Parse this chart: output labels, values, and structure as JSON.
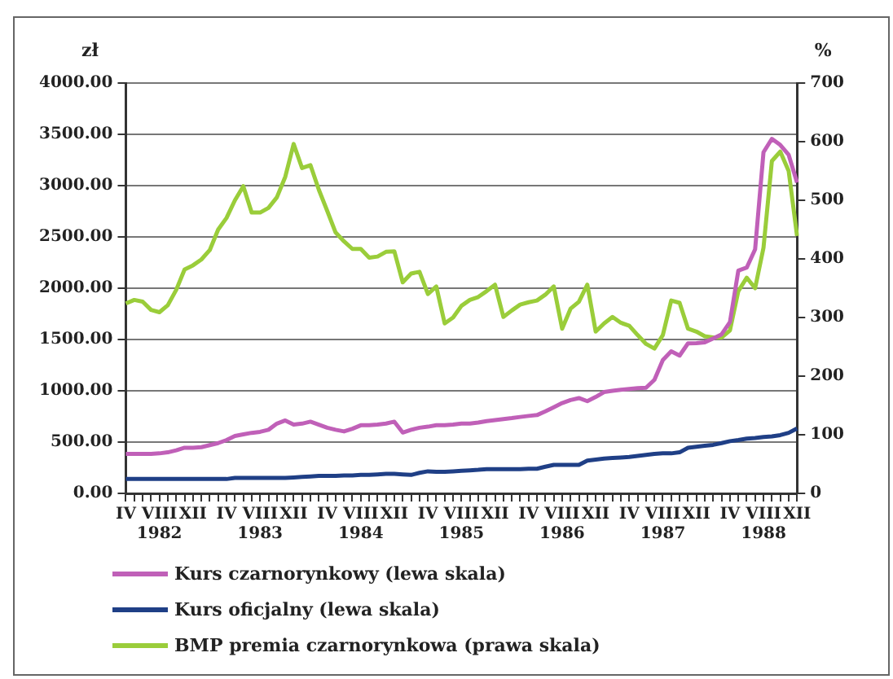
{
  "chart_data": {
    "type": "line",
    "ylabel": "zł",
    "y2label": "%",
    "categories": [
      "IV",
      null,
      null,
      null,
      "VIII\n1982",
      null,
      null,
      null,
      "XII",
      null,
      null,
      null,
      "IV",
      null,
      null,
      null,
      "VIII\n1983",
      null,
      null,
      null,
      "XII",
      null,
      null,
      null,
      "IV",
      null,
      null,
      null,
      "VIII\n1984",
      null,
      null,
      null,
      "XII",
      null,
      null,
      null,
      "IV",
      null,
      null,
      null,
      "VIII\n1985",
      null,
      null,
      null,
      "XII",
      null,
      null,
      null,
      "IV",
      null,
      null,
      null,
      "VIII\n1986",
      null,
      null,
      null,
      "XII",
      null,
      null,
      null,
      "IV",
      null,
      null,
      null,
      "VIII\n1987",
      null,
      null,
      null,
      "XII",
      null,
      null,
      null,
      "IV",
      null,
      null,
      null,
      "VIII\n1988",
      null,
      null,
      null,
      "XII"
    ],
    "series": [
      {
        "name": "Kurs czarnorynkowy (lewa skala)",
        "color": "#c060b8",
        "values": [
          385,
          385,
          385,
          385,
          390,
          400,
          420,
          445,
          445,
          450,
          470,
          490,
          520,
          560,
          575,
          590,
          600,
          620,
          680,
          711,
          670,
          680,
          699,
          670,
          640,
          620,
          604,
          630,
          664,
          664,
          670,
          681,
          699,
          593,
          620,
          640,
          650,
          664,
          664,
          670,
          681,
          681,
          690,
          705,
          715,
          725,
          734,
          745,
          755,
          763,
          800,
          840,
          880,
          910,
          929,
          899,
          940,
          988,
          1000,
          1010,
          1018,
          1025,
          1030,
          1107,
          1300,
          1385,
          1343,
          1462,
          1465,
          1473,
          1510,
          1550,
          1669,
          2172,
          2201,
          2379,
          3325,
          3456,
          3396,
          3300,
          3030
        ]
      },
      {
        "name": "Kurs oficjalny (lewa skala)",
        "color": "#1f3f86",
        "values": [
          140,
          140,
          140,
          140,
          140,
          140,
          140,
          140,
          140,
          140,
          140,
          140,
          140,
          150,
          150,
          150,
          150,
          150,
          150,
          150,
          155,
          160,
          165,
          170,
          170,
          170,
          175,
          175,
          180,
          180,
          185,
          190,
          190,
          185,
          180,
          200,
          215,
          210,
          210,
          215,
          220,
          225,
          230,
          237,
          237,
          237,
          237,
          237,
          240,
          240,
          260,
          278,
          278,
          278,
          278,
          320,
          330,
          340,
          345,
          350,
          355,
          365,
          375,
          385,
          390,
          390,
          400,
          444,
          455,
          465,
          473,
          490,
          509,
          520,
          533,
          540,
          550,
          556,
          568,
          590,
          633
        ]
      },
      {
        "name": "BMP premia czarnorynkowa (prawa skala)",
        "color": "#9acd3a",
        "axis": "y2",
        "values": [
          324,
          330,
          327,
          313,
          309,
          321,
          347,
          382,
          389,
          399,
          415,
          450,
          470,
          500,
          524,
          479,
          479,
          487,
          505,
          540,
          596,
          555,
          560,
          518,
          482,
          445,
          430,
          417,
          417,
          402,
          404,
          412,
          413,
          360,
          375,
          378,
          340,
          353,
          290,
          300,
          320,
          330,
          335,
          345,
          356,
          301,
          312,
          322,
          326,
          329,
          339,
          353,
          281,
          315,
          327,
          356,
          276,
          290,
          301,
          291,
          286,
          270,
          255,
          247,
          270,
          329,
          325,
          281,
          276,
          268,
          266,
          266,
          278,
          345,
          368,
          350,
          419,
          567,
          583,
          550,
          439
        ]
      }
    ],
    "ylim": [
      0,
      4000
    ],
    "yticks": [
      {
        "value": 0,
        "label": "0.00"
      },
      {
        "value": 500,
        "label": "500.00"
      },
      {
        "value": 1000,
        "label": "1000.00"
      },
      {
        "value": 1500,
        "label": "1500.00"
      },
      {
        "value": 2000,
        "label": "2000.00"
      },
      {
        "value": 2500,
        "label": "2500.00"
      },
      {
        "value": 3000,
        "label": "3000.00"
      },
      {
        "value": 3500,
        "label": "3500.00"
      },
      {
        "value": 4000,
        "label": "4000.00"
      }
    ],
    "y2lim": [
      0,
      700
    ],
    "y2ticks": [
      0,
      100,
      200,
      300,
      400,
      500,
      600,
      700
    ],
    "grid": "y",
    "legend": "bottom"
  }
}
